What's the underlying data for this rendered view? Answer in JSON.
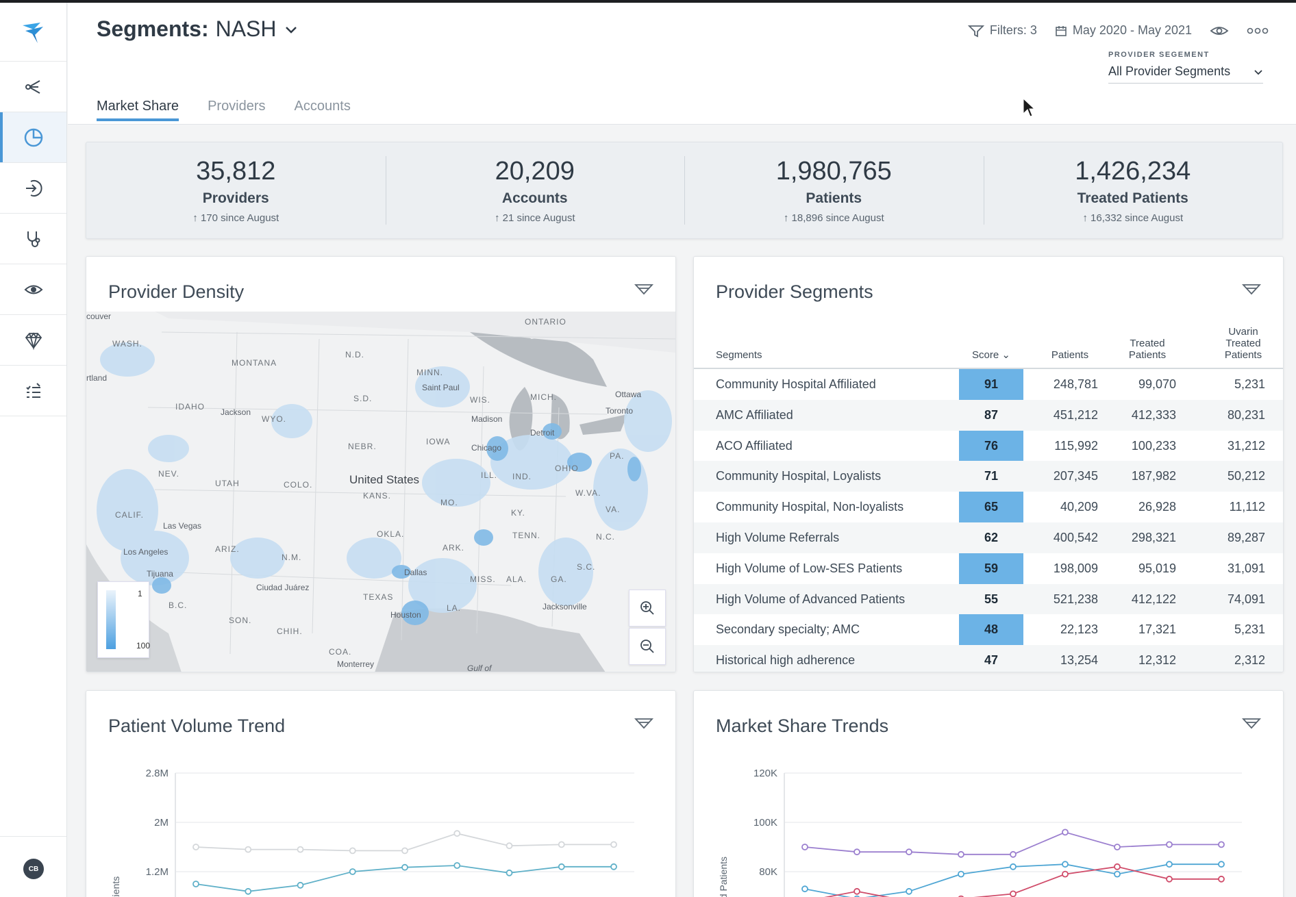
{
  "header": {
    "segment_label": "Segments:",
    "segment_value": "NASH",
    "filters": "Filters: 3",
    "date_range": "May 2020 - May 2021",
    "provider_segment_caption": "PROVIDER SEGEMENT",
    "provider_segment_value": "All Provider Segments",
    "tabs": [
      "Market Share",
      "Providers",
      "Accounts"
    ]
  },
  "sidebar": {
    "items": [
      "home-logo-icon",
      "share-network-icon",
      "pie-chart-icon",
      "login-arrow-icon",
      "stethoscope-icon",
      "eye-icon",
      "diamond-icon",
      "checklist-icon"
    ],
    "avatar": "CB"
  },
  "kpis": [
    {
      "value": "35,812",
      "label": "Providers",
      "delta": "170 since August"
    },
    {
      "value": "20,209",
      "label": "Accounts",
      "delta": "21 since August"
    },
    {
      "value": "1,980,765",
      "label": "Patients",
      "delta": "18,896 since August"
    },
    {
      "value": "1,426,234",
      "label": "Treated Patients",
      "delta": "16,332 since August"
    }
  ],
  "density": {
    "title": "Provider Density",
    "legend_top": "1",
    "legend_bottom": "100",
    "regions": [
      "ONTARIO",
      "WASH.",
      "MONTANA",
      "N.D.",
      "MINN.",
      "WIS.",
      "MICH.",
      "IDAHO",
      "WYO.",
      "S.D.",
      "IOWA",
      "NEBR.",
      "NEV.",
      "UTAH",
      "COLO.",
      "KANS.",
      "MO.",
      "ILL.",
      "IND.",
      "OHIO",
      "PA.",
      "W.VA.",
      "KY.",
      "VA.",
      "CALIF.",
      "ARIZ.",
      "N.M.",
      "OKLA.",
      "ARK.",
      "TENN.",
      "N.C.",
      "S.C.",
      "MISS.",
      "ALA.",
      "GA.",
      "TEXAS",
      "LA.",
      "SON.",
      "CHIH.",
      "COA.",
      "B.C."
    ],
    "cities": [
      "couver",
      "rtland",
      "Jackson",
      "Saint Paul",
      "Ottawa",
      "Madison",
      "Toronto",
      "Detroit",
      "Chicago",
      "United States",
      "Las Vegas",
      "Los Angeles",
      "Tijuana",
      "Ciudad Juárez",
      "Dallas",
      "Houston",
      "Jacksonville",
      "Monterrey",
      "Gulf of"
    ]
  },
  "segments": {
    "title": "Provider Segments",
    "columns": [
      "Segments",
      "Score",
      "Patients",
      "Treated Patients",
      "Uvarin Treated Patients"
    ],
    "rows": [
      {
        "name": "Community Hospital Affiliated",
        "score": "91",
        "patients": "248,781",
        "treated": "99,070",
        "uvarin": "5,231"
      },
      {
        "name": "AMC Affiliated",
        "score": "87",
        "patients": "451,212",
        "treated": "412,333",
        "uvarin": "80,231"
      },
      {
        "name": "ACO Affiliated",
        "score": "76",
        "patients": "115,992",
        "treated": "100,233",
        "uvarin": "31,212"
      },
      {
        "name": "Community Hospital, Loyalists",
        "score": "71",
        "patients": "207,345",
        "treated": "187,982",
        "uvarin": "50,212"
      },
      {
        "name": "Community Hospital, Non-loyalists",
        "score": "65",
        "patients": "40,209",
        "treated": "26,928",
        "uvarin": "11,112"
      },
      {
        "name": "High Volume Referrals",
        "score": "62",
        "patients": "400,542",
        "treated": "298,321",
        "uvarin": "89,287"
      },
      {
        "name": "High Volume of Low-SES Patients",
        "score": "59",
        "patients": "198,009",
        "treated": "95,019",
        "uvarin": "31,091"
      },
      {
        "name": "High Volume of Advanced Patients",
        "score": "55",
        "patients": "521,238",
        "treated": "412,122",
        "uvarin": "74,091"
      },
      {
        "name": "Secondary specialty; AMC",
        "score": "48",
        "patients": "22,123",
        "treated": "17,321",
        "uvarin": "5,231"
      },
      {
        "name": "Historical high adherence",
        "score": "47",
        "patients": "13,254",
        "treated": "12,312",
        "uvarin": "2,312"
      }
    ]
  },
  "chart_data": [
    {
      "type": "line",
      "title": "Patient Volume Trend",
      "ylabel": "atients",
      "yticks": [
        "2.8M",
        "2M",
        "1.2M"
      ],
      "ylim": [
        0.8,
        2.8
      ],
      "x": [
        1,
        2,
        3,
        4,
        5,
        6,
        7,
        8,
        9
      ],
      "series": [
        {
          "values": [
            1.6,
            1.56,
            1.56,
            1.54,
            1.54,
            1.82,
            1.62,
            1.64,
            1.64
          ],
          "color": "#d4d7da"
        },
        {
          "values": [
            1.0,
            0.88,
            0.98,
            1.2,
            1.27,
            1.3,
            1.18,
            1.28,
            1.28
          ],
          "color": "#5fb0c8"
        }
      ]
    },
    {
      "type": "line",
      "title": "Market Share Trends",
      "ylabel": "ed Patients",
      "yticks": [
        "120K",
        "100K",
        "80K"
      ],
      "ylim": [
        70,
        120
      ],
      "x": [
        1,
        2,
        3,
        4,
        5,
        6,
        7,
        8,
        9
      ],
      "series": [
        {
          "values": [
            90,
            88,
            88,
            87,
            87,
            96,
            90,
            91,
            91
          ],
          "color": "#9b7fcf"
        },
        {
          "values": [
            73,
            69,
            72,
            79,
            82,
            83,
            79,
            83,
            83
          ],
          "color": "#4fa6d4"
        },
        {
          "values": [
            68,
            72,
            68,
            69,
            71,
            79,
            82,
            77,
            77
          ],
          "color": "#d04c6a"
        }
      ]
    }
  ]
}
